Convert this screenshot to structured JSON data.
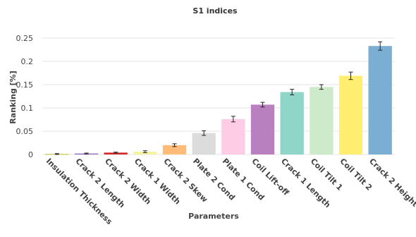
{
  "chart_data": {
    "type": "bar",
    "title": "S1 indices",
    "xlabel": "Parameters",
    "ylabel": "Ranking [%]",
    "ylim": [
      0,
      0.25
    ],
    "yticks": [
      0,
      0.05,
      0.1,
      0.15,
      0.2,
      0.25
    ],
    "ytick_labels": [
      "0",
      "0.05",
      "0.1",
      "0.15",
      "0.2",
      "0.25"
    ],
    "grid": true,
    "categories": [
      "Insulation Thickness",
      "Crack 2 Length",
      "Crack 2 Width",
      "Crack 1 Width",
      "Crack 2 Skew",
      "Plate 2 Cond",
      "Plate 1 Cond",
      "Coil Lift-off",
      "Crack 1 Length",
      "Coil Tilt 1",
      "Coil Tilt 2",
      "Crack 2 Height"
    ],
    "values": [
      0.001,
      0.002,
      0.004,
      0.006,
      0.02,
      0.046,
      0.076,
      0.107,
      0.134,
      0.145,
      0.169,
      0.233
    ],
    "error": [
      0.001,
      0.001,
      0.001,
      0.002,
      0.003,
      0.005,
      0.006,
      0.005,
      0.006,
      0.005,
      0.008,
      0.009
    ],
    "colors": [
      "#bcbd22",
      "#9467bd",
      "#d62728",
      "#f5f3a0",
      "#ffbb78",
      "#dcdcdc",
      "#ffcce6",
      "#b980c0",
      "#8fd6c8",
      "#cdeacb",
      "#ffee6f",
      "#7aaed3"
    ]
  }
}
